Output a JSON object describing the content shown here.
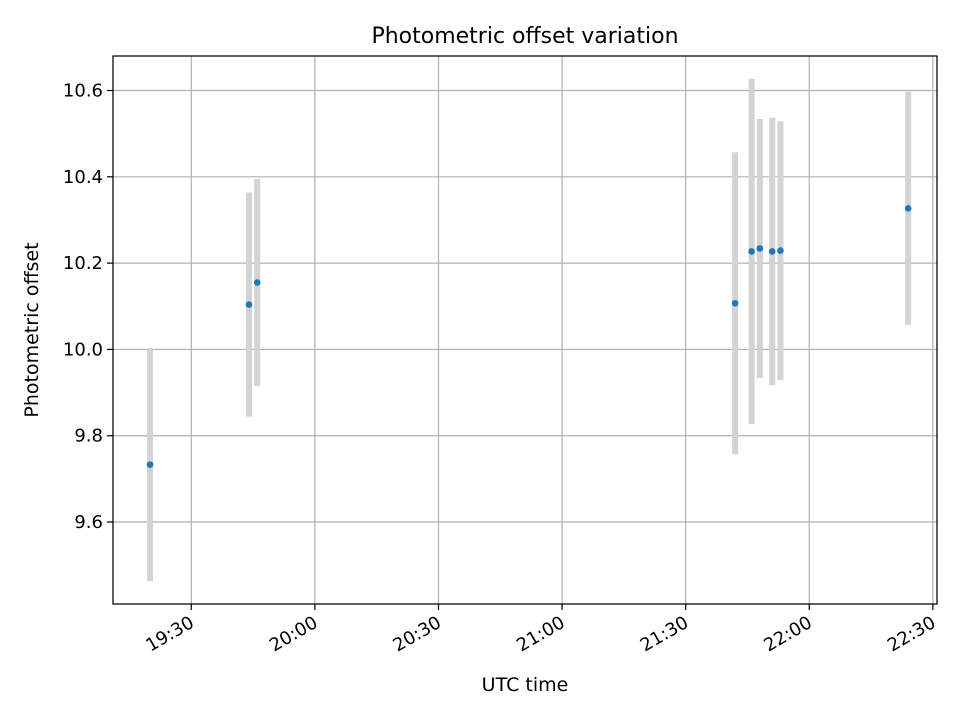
{
  "chart_data": {
    "type": "scatter",
    "title": "Photometric offset variation",
    "xlabel": "UTC time",
    "ylabel": "Photometric offset",
    "x_is_time": true,
    "xlim": [
      "19:11",
      "22:31"
    ],
    "ylim": [
      9.41,
      10.68
    ],
    "xticks": [
      "19:30",
      "20:00",
      "20:30",
      "21:00",
      "21:30",
      "22:00",
      "22:30"
    ],
    "yticks": [
      9.6,
      9.8,
      10.0,
      10.2,
      10.4,
      10.6
    ],
    "ytick_labels": [
      "9.6",
      "9.8",
      "10.0",
      "10.2",
      "10.4",
      "10.6"
    ],
    "grid": true,
    "marker_color": "#1f77b4",
    "errorbar_color": "#d3d3d3",
    "points": [
      {
        "x": "19:20",
        "y": 9.733,
        "err": 0.27
      },
      {
        "x": "19:44",
        "y": 10.104,
        "err": 0.26
      },
      {
        "x": "19:46",
        "y": 10.155,
        "err": 0.24
      },
      {
        "x": "21:42",
        "y": 10.107,
        "err": 0.35
      },
      {
        "x": "21:46",
        "y": 10.227,
        "err": 0.4
      },
      {
        "x": "21:48",
        "y": 10.234,
        "err": 0.3
      },
      {
        "x": "21:51",
        "y": 10.227,
        "err": 0.31
      },
      {
        "x": "21:53",
        "y": 10.229,
        "err": 0.3
      },
      {
        "x": "22:24",
        "y": 10.327,
        "err": 0.27
      }
    ]
  }
}
